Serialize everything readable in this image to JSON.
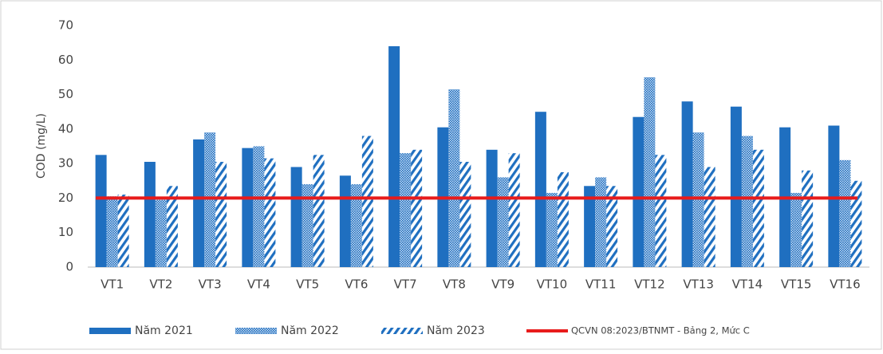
{
  "chart_data": {
    "type": "bar",
    "ylabel": "COD (mg/L)",
    "categories": [
      "VT1",
      "VT2",
      "VT3",
      "VT4",
      "VT5",
      "VT6",
      "VT7",
      "VT8",
      "VT9",
      "VT10",
      "VT11",
      "VT12",
      "VT13",
      "VT14",
      "VT15",
      "VT16"
    ],
    "series": [
      {
        "name": "Năm 2021",
        "color": "#1f6fc0",
        "pattern": "solid",
        "values": [
          32.5,
          30.5,
          37,
          34.5,
          29,
          26.5,
          64,
          40.5,
          34,
          45,
          23.5,
          43.5,
          48,
          46.5,
          40.5,
          41
        ]
      },
      {
        "name": "Năm 2022",
        "color": "#1f6fc0",
        "pattern": "dots",
        "values": [
          20.5,
          19.5,
          39,
          35,
          24,
          24,
          33,
          51.5,
          26,
          21.5,
          26,
          55,
          39,
          38,
          21.5,
          31
        ]
      },
      {
        "name": "Năm 2023",
        "color": "#1f6fc0",
        "pattern": "hatch",
        "values": [
          21,
          23.5,
          30.5,
          31.5,
          32.5,
          38,
          34,
          30.5,
          33,
          27.5,
          23.5,
          32.5,
          29,
          34,
          28,
          25
        ]
      }
    ],
    "reference_lines": [
      {
        "name": "QCVN 08:2023/BTNMT - Bảng 2, Mức C",
        "color": "#e81b1b",
        "value": 20
      }
    ],
    "ylim": [
      0,
      70
    ],
    "yticks": [
      0,
      10,
      20,
      30,
      40,
      50,
      60,
      70
    ],
    "grid": false
  }
}
